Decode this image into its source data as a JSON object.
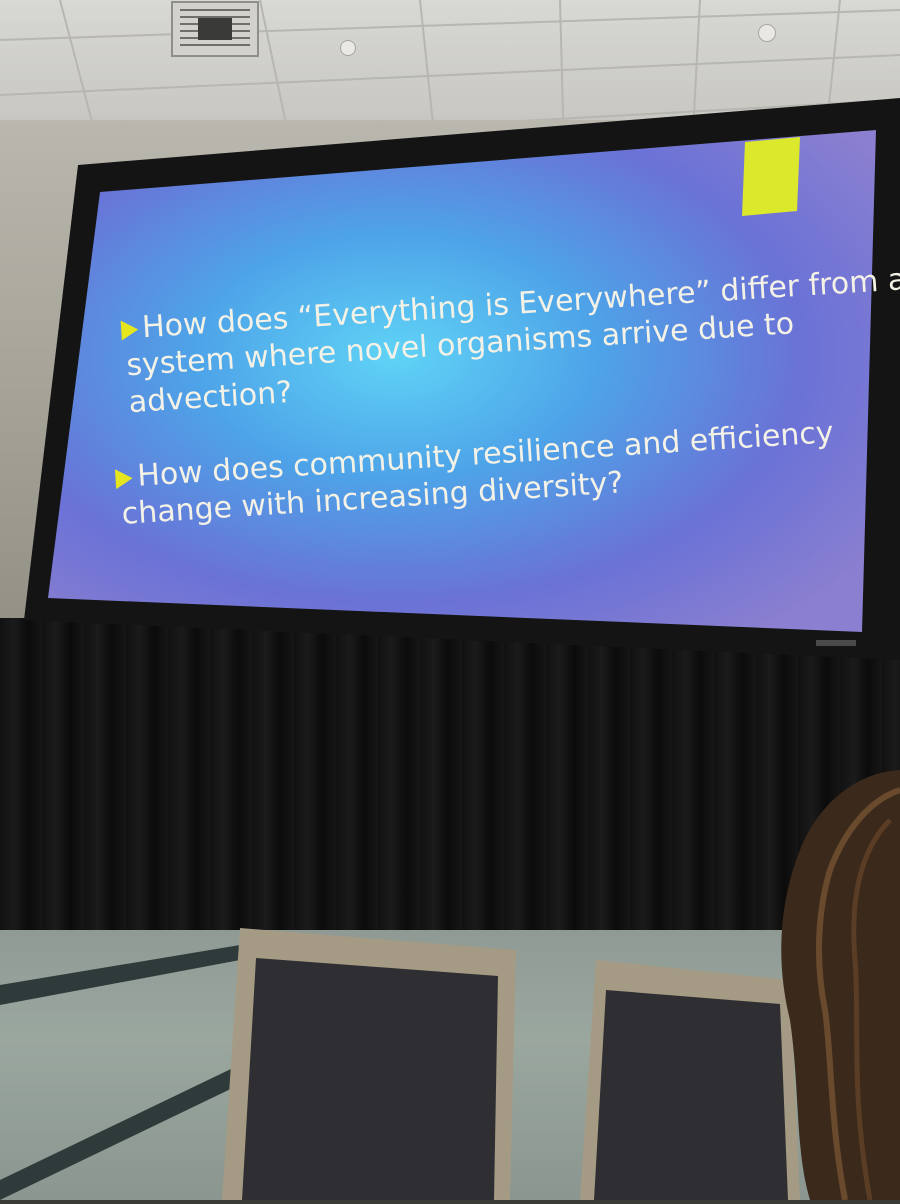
{
  "scene": "conference room presentation",
  "slide": {
    "accent_color": "#d9ee2a",
    "background_color": "#6b6fd8",
    "bullets": [
      {
        "lines": [
          "How does “Everything is Everywhere” differ from a",
          "system where novel organisms arrive due to",
          "advection?"
        ]
      },
      {
        "lines": [
          "How does community resilience and efficiency",
          "change with increasing diversity?"
        ]
      }
    ]
  }
}
